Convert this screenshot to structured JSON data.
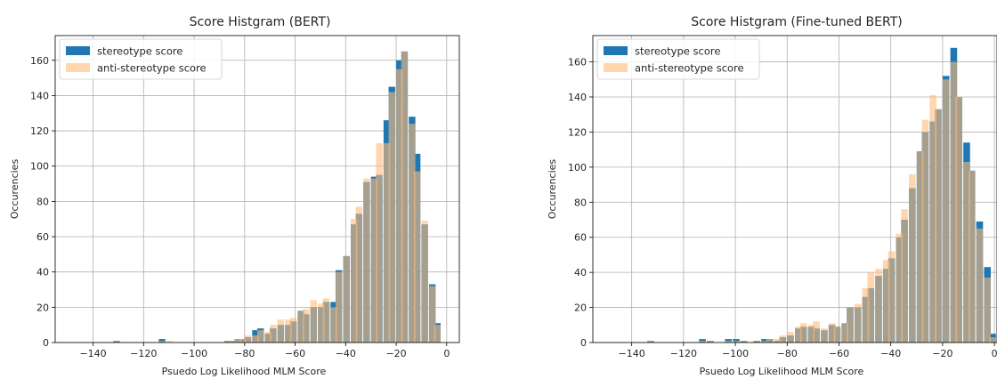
{
  "chart_data": [
    {
      "type": "bar",
      "title": "Score Histgram (BERT)",
      "xlabel": "Psuedo Log Likelihood MLM Score",
      "ylabel": "Occurencies",
      "xlim": [
        -155,
        5
      ],
      "ylim": [
        0,
        174
      ],
      "xticks": [
        -140,
        -120,
        -100,
        -80,
        -60,
        -40,
        -20,
        0
      ],
      "yticks": [
        0,
        20,
        40,
        60,
        80,
        100,
        120,
        140,
        160
      ],
      "grid": true,
      "legend": "top-left",
      "bin_width": 2.6,
      "series": [
        {
          "name": "stereotype score",
          "color": "#1f77b4",
          "bins": [
            [
              -132,
              1
            ],
            [
              -114,
              2
            ],
            [
              -88,
              1
            ],
            [
              -86,
              1
            ],
            [
              -84,
              2
            ],
            [
              -82,
              2
            ],
            [
              -80,
              3
            ],
            [
              -77,
              7
            ],
            [
              -75,
              8
            ],
            [
              -72,
              5
            ],
            [
              -70,
              8
            ],
            [
              -67,
              10
            ],
            [
              -64,
              10
            ],
            [
              -62,
              12
            ],
            [
              -59,
              18
            ],
            [
              -57,
              16
            ],
            [
              -54,
              20
            ],
            [
              -51,
              20
            ],
            [
              -49,
              23
            ],
            [
              -46,
              23
            ],
            [
              -44,
              41
            ],
            [
              -41,
              49
            ],
            [
              -38,
              67
            ],
            [
              -36,
              73
            ],
            [
              -33,
              91
            ],
            [
              -30,
              94
            ],
            [
              -28,
              95
            ],
            [
              -25,
              126
            ],
            [
              -23,
              145
            ],
            [
              -20,
              160
            ],
            [
              -18,
              165
            ],
            [
              -15,
              128
            ],
            [
              -13,
              107
            ],
            [
              -10,
              67
            ],
            [
              -7,
              33
            ],
            [
              -5,
              11
            ]
          ]
        },
        {
          "name": "anti-stereotype score",
          "color": "#ffbb78",
          "bins": [
            [
              -132,
              1
            ],
            [
              -114,
              1
            ],
            [
              -111,
              1
            ],
            [
              -88,
              1
            ],
            [
              -86,
              1
            ],
            [
              -84,
              2
            ],
            [
              -82,
              2
            ],
            [
              -80,
              4
            ],
            [
              -77,
              4
            ],
            [
              -75,
              7
            ],
            [
              -72,
              6
            ],
            [
              -70,
              10
            ],
            [
              -67,
              13
            ],
            [
              -64,
              13
            ],
            [
              -62,
              14
            ],
            [
              -59,
              18
            ],
            [
              -57,
              19
            ],
            [
              -54,
              24
            ],
            [
              -51,
              22
            ],
            [
              -49,
              25
            ],
            [
              -46,
              20
            ],
            [
              -44,
              40
            ],
            [
              -41,
              49
            ],
            [
              -38,
              70
            ],
            [
              -36,
              77
            ],
            [
              -33,
              93
            ],
            [
              -30,
              93
            ],
            [
              -28,
              113
            ],
            [
              -25,
              113
            ],
            [
              -23,
              142
            ],
            [
              -20,
              155
            ],
            [
              -18,
              165
            ],
            [
              -15,
              124
            ],
            [
              -13,
              97
            ],
            [
              -10,
              69
            ],
            [
              -7,
              32
            ],
            [
              -5,
              10
            ]
          ]
        }
      ]
    },
    {
      "type": "bar",
      "title": "Score Histgram (Fine-tuned BERT)",
      "xlabel": "Psuedo Log Likelihood MLM Score",
      "ylabel": "Occurencies",
      "xlim": [
        -155,
        1
      ],
      "ylim": [
        0,
        175
      ],
      "xticks": [
        -140,
        -120,
        -100,
        -80,
        -60,
        -40,
        -20,
        0
      ],
      "yticks": [
        0,
        20,
        40,
        60,
        80,
        100,
        120,
        140,
        160
      ],
      "grid": true,
      "legend": "top-left",
      "bin_width": 2.6,
      "series": [
        {
          "name": "stereotype score",
          "color": "#1f77b4",
          "bins": [
            [
              -134,
              1
            ],
            [
              -114,
              2
            ],
            [
              -111,
              1
            ],
            [
              -104,
              2
            ],
            [
              -101,
              2
            ],
            [
              -98,
              1
            ],
            [
              -93,
              1
            ],
            [
              -90,
              2
            ],
            [
              -88,
              2
            ],
            [
              -85,
              1
            ],
            [
              -83,
              3
            ],
            [
              -80,
              4
            ],
            [
              -77,
              8
            ],
            [
              -75,
              9
            ],
            [
              -72,
              9
            ],
            [
              -70,
              8
            ],
            [
              -67,
              7
            ],
            [
              -64,
              10
            ],
            [
              -62,
              9
            ],
            [
              -59,
              11
            ],
            [
              -57,
              20
            ],
            [
              -54,
              20
            ],
            [
              -51,
              26
            ],
            [
              -49,
              31
            ],
            [
              -46,
              38
            ],
            [
              -43,
              42
            ],
            [
              -41,
              48
            ],
            [
              -38,
              60
            ],
            [
              -36,
              70
            ],
            [
              -33,
              88
            ],
            [
              -30,
              109
            ],
            [
              -28,
              120
            ],
            [
              -25,
              126
            ],
            [
              -23,
              133
            ],
            [
              -20,
              152
            ],
            [
              -17,
              168
            ],
            [
              -15,
              140
            ],
            [
              -12,
              114
            ],
            [
              -10,
              98
            ],
            [
              -7,
              69
            ],
            [
              -4,
              43
            ],
            [
              -2,
              5
            ]
          ]
        },
        {
          "name": "anti-stereotype score",
          "color": "#ffbb78",
          "bins": [
            [
              -134,
              1
            ],
            [
              -114,
              1
            ],
            [
              -111,
              1
            ],
            [
              -104,
              1
            ],
            [
              -101,
              1
            ],
            [
              -98,
              1
            ],
            [
              -93,
              1
            ],
            [
              -90,
              1
            ],
            [
              -88,
              2
            ],
            [
              -85,
              2
            ],
            [
              -83,
              4
            ],
            [
              -80,
              6
            ],
            [
              -77,
              9
            ],
            [
              -75,
              11
            ],
            [
              -72,
              10
            ],
            [
              -70,
              12
            ],
            [
              -67,
              8
            ],
            [
              -64,
              11
            ],
            [
              -62,
              9
            ],
            [
              -59,
              11
            ],
            [
              -57,
              20
            ],
            [
              -54,
              22
            ],
            [
              -51,
              31
            ],
            [
              -49,
              40
            ],
            [
              -46,
              42
            ],
            [
              -43,
              47
            ],
            [
              -41,
              52
            ],
            [
              -38,
              62
            ],
            [
              -36,
              76
            ],
            [
              -33,
              96
            ],
            [
              -30,
              109
            ],
            [
              -28,
              127
            ],
            [
              -25,
              141
            ],
            [
              -23,
              133
            ],
            [
              -20,
              150
            ],
            [
              -17,
              160
            ],
            [
              -15,
              140
            ],
            [
              -12,
              103
            ],
            [
              -10,
              98
            ],
            [
              -7,
              65
            ],
            [
              -4,
              37
            ],
            [
              -2,
              3
            ]
          ]
        }
      ]
    }
  ]
}
